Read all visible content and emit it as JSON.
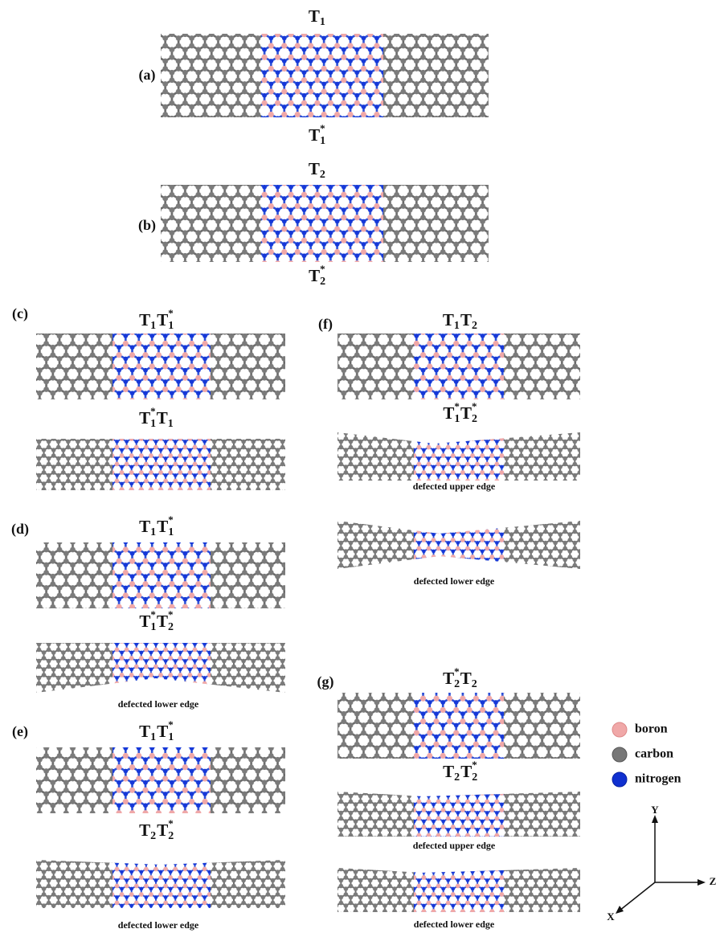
{
  "panels": {
    "a": {
      "label": "(a)",
      "top": [
        {
          "base": "T",
          "sub": "1"
        }
      ],
      "bottom": [
        {
          "base": "T",
          "sub": "1",
          "sup": "*"
        }
      ]
    },
    "b": {
      "label": "(b)",
      "top": [
        {
          "base": "T",
          "sub": "2"
        }
      ],
      "bottom": [
        {
          "base": "T",
          "sub": "2",
          "sup": "*"
        }
      ]
    },
    "c": {
      "label": "(c)",
      "top": [
        {
          "base": "T",
          "sub": "1"
        },
        {
          "base": "T",
          "sub": "1",
          "sup": "*"
        }
      ],
      "middle": [
        {
          "base": "T",
          "sub": "1",
          "sup": "*"
        },
        {
          "base": "T",
          "sub": "1"
        }
      ]
    },
    "d": {
      "label": "(d)",
      "top": [
        {
          "base": "T",
          "sub": "1"
        },
        {
          "base": "T",
          "sub": "1",
          "sup": "*"
        }
      ],
      "middle": [
        {
          "base": "T",
          "sub": "1",
          "sup": "*"
        },
        {
          "base": "T",
          "sub": "2",
          "sup": "*"
        }
      ],
      "caption": "defected lower edge"
    },
    "e": {
      "label": "(e)",
      "top": [
        {
          "base": "T",
          "sub": "1"
        },
        {
          "base": "T",
          "sub": "1",
          "sup": "*"
        }
      ],
      "middle": [
        {
          "base": "T",
          "sub": "2"
        },
        {
          "base": "T",
          "sub": "2",
          "sup": "*"
        }
      ],
      "caption": "defected lower edge"
    },
    "f": {
      "label": "(f)",
      "top": [
        {
          "base": "T",
          "sub": "1"
        },
        {
          "base": "T",
          "sub": "2"
        }
      ],
      "middle": [
        {
          "base": "T",
          "sub": "1",
          "sup": "*"
        },
        {
          "base": "T",
          "sub": "2",
          "sup": "*"
        }
      ],
      "caption_1": "defected upper edge",
      "caption_2": "defected lower edge"
    },
    "g": {
      "label": "(g)",
      "top": [
        {
          "base": "T",
          "sub": "2",
          "sup": "*"
        },
        {
          "base": "T",
          "sub": "2"
        }
      ],
      "middle": [
        {
          "base": "T",
          "sub": "2"
        },
        {
          "base": "T",
          "sub": "2",
          "sup": "*"
        }
      ],
      "caption_1": "defected upper edge",
      "caption_2": "defected lower edge"
    }
  },
  "legend": [
    "boron",
    "carbon",
    "nitrogen"
  ],
  "axes": {
    "y": "Y",
    "z": "Z",
    "x": "X"
  }
}
